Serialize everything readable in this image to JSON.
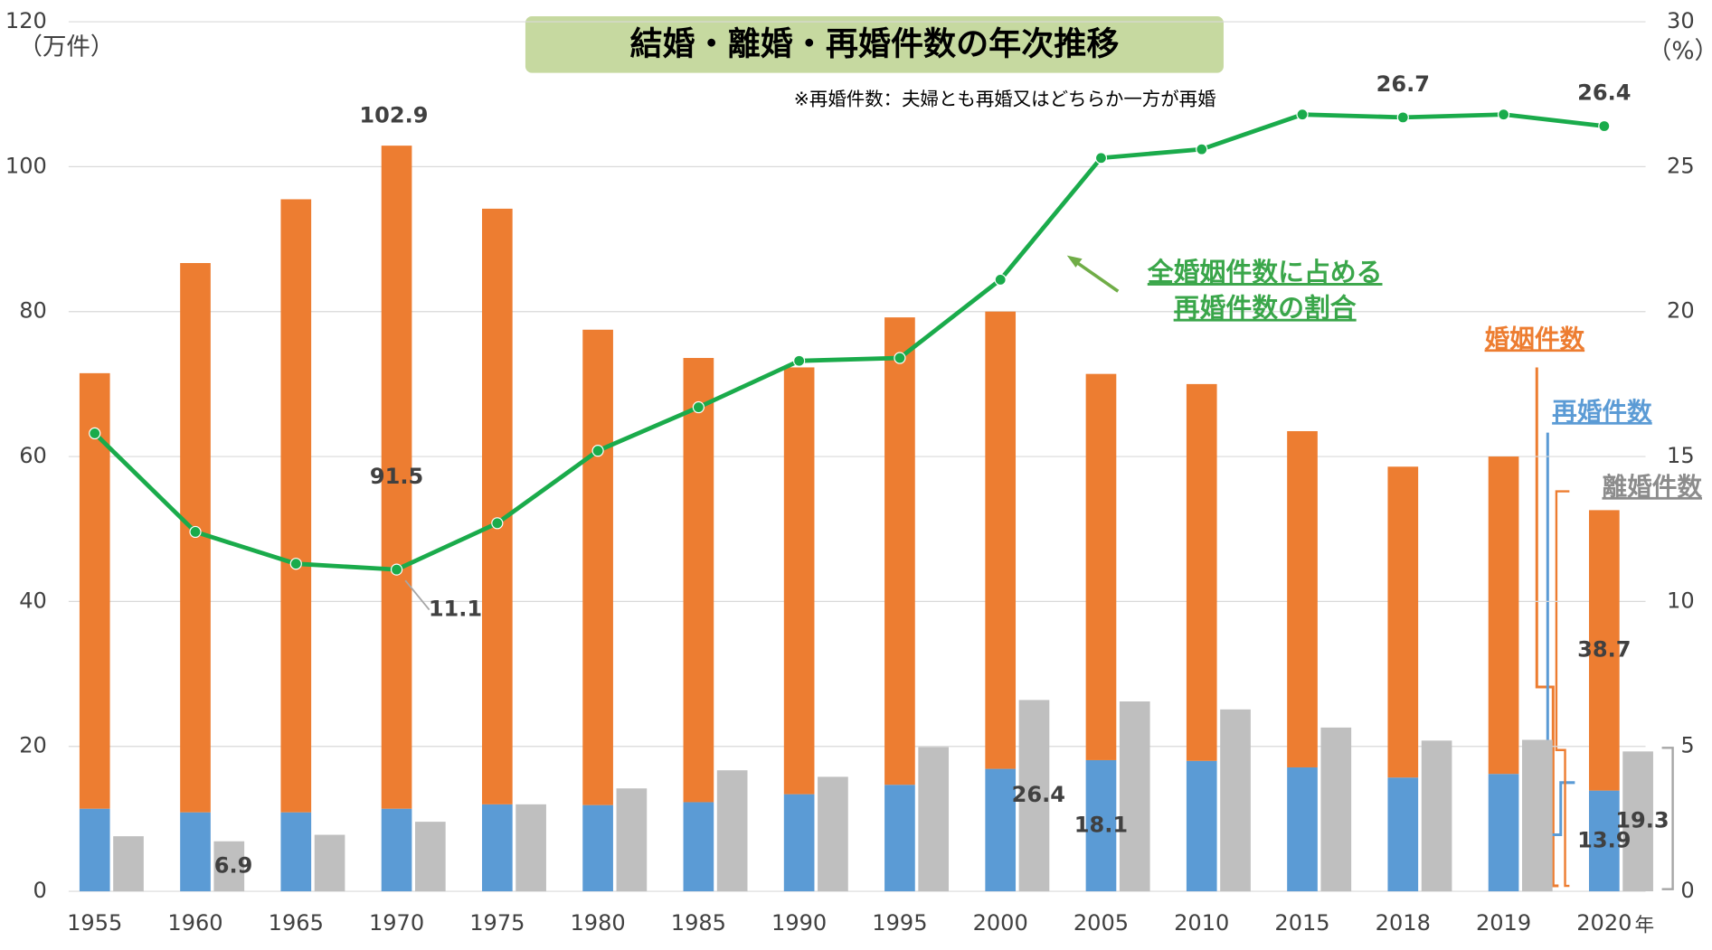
{
  "chart_data": {
    "type": "bar",
    "title": "結婚・離婚・再婚件数の年次推移",
    "subtitle": "※再婚件数：夫婦とも再婚又はどちらか一方が再婚",
    "y_label": "（万件）",
    "y2_label": "（%）",
    "x_label": "年",
    "annotations": [
      "102.9"
    ],
    "categories": [
      "1955",
      "1960",
      "1965",
      "1970",
      "1975",
      "1980",
      "1985",
      "1990",
      "1995",
      "2000",
      "2005",
      "2010",
      "2015",
      "2018",
      "2019",
      "2020"
    ],
    "series": [
      {
        "name": "再婚件数",
        "color": "#5b9bd5",
        "stack": "a",
        "values": [
          11.4,
          10.9,
          10.9,
          11.4,
          12.0,
          11.9,
          12.3,
          13.4,
          14.7,
          16.9,
          18.1,
          18.0,
          17.1,
          15.7,
          16.2,
          13.9
        ],
        "value_labels": [
          null,
          null,
          null,
          null,
          null,
          null,
          null,
          null,
          null,
          null,
          "18.1",
          null,
          null,
          null,
          null,
          "13.9"
        ]
      },
      {
        "name": "婚姻件数",
        "color": "#ed7d31",
        "stack": "a",
        "values": [
          60.1,
          75.8,
          84.6,
          91.5,
          82.2,
          65.6,
          61.3,
          58.9,
          64.5,
          63.1,
          53.3,
          52.0,
          46.4,
          42.9,
          43.8,
          38.7
        ],
        "value_labels": [
          null,
          null,
          null,
          "91.5",
          null,
          null,
          null,
          null,
          null,
          null,
          null,
          null,
          null,
          null,
          null,
          "38.7"
        ]
      },
      {
        "name": "離婚件数",
        "color": "#bfbfbf",
        "stack": "b",
        "values": [
          7.6,
          6.9,
          7.8,
          9.6,
          12.0,
          14.2,
          16.7,
          15.8,
          19.9,
          26.4,
          26.2,
          25.1,
          22.6,
          20.8,
          20.9,
          19.3
        ],
        "value_labels": [
          null,
          "6.9",
          null,
          null,
          null,
          null,
          null,
          null,
          null,
          "26.4",
          null,
          null,
          null,
          null,
          null,
          "19.3"
        ]
      },
      {
        "name": [
          "全婚姻件数に占める",
          "再婚件数の割合"
        ],
        "color": "#1aab4b",
        "type": "line",
        "axis": "y2",
        "values": [
          15.8,
          12.4,
          11.3,
          11.1,
          12.7,
          15.2,
          16.7,
          18.3,
          18.4,
          21.1,
          25.3,
          25.6,
          26.8,
          26.7,
          26.8,
          26.4
        ],
        "value_labels": [
          null,
          null,
          null,
          "11.1",
          null,
          null,
          null,
          null,
          null,
          null,
          null,
          null,
          null,
          "26.7",
          null,
          "26.4"
        ]
      }
    ],
    "ylim": [
      0,
      120
    ],
    "yticks": [
      0,
      20,
      40,
      60,
      80,
      100,
      120
    ],
    "y2lim": [
      0,
      30
    ],
    "y2ticks": [
      0,
      5,
      10,
      15,
      20,
      25,
      30
    ],
    "grid": true
  }
}
